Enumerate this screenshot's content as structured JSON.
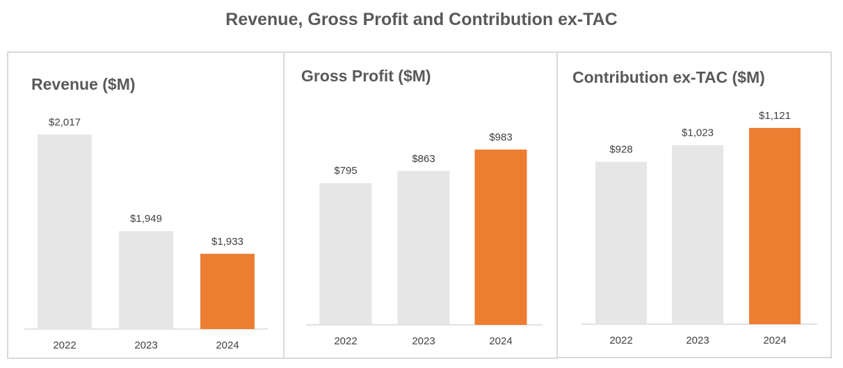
{
  "title": "Revenue, Gross Profit and Contribution ex-TAC",
  "colors": {
    "past": "#E7E6E6",
    "highlight": "#ED7D31",
    "title": "#595959"
  },
  "chart_data": [
    {
      "type": "bar",
      "title": "Revenue ($M)",
      "categories": [
        "2022",
        "2023",
        "2024"
      ],
      "values": [
        2017,
        1949,
        1933
      ],
      "labels": [
        "$2,017",
        "$1,949",
        "$1,933"
      ],
      "ylim": [
        1880,
        2050
      ],
      "highlight_category": "2024",
      "grid": false
    },
    {
      "type": "bar",
      "title": "Gross Profit ($M)",
      "categories": [
        "2022",
        "2023",
        "2024"
      ],
      "values": [
        795,
        863,
        983
      ],
      "labels": [
        "$795",
        "$863",
        "$983"
      ],
      "ylim": [
        0,
        1100
      ],
      "highlight_category": "2024",
      "grid": false
    },
    {
      "type": "bar",
      "title": "Contribution ex-TAC ($M)",
      "categories": [
        "2022",
        "2023",
        "2024"
      ],
      "values": [
        928,
        1023,
        1121
      ],
      "labels": [
        "$928",
        "$1,023",
        "$1,121"
      ],
      "ylim": [
        0,
        1200
      ],
      "highlight_category": "2024",
      "grid": false
    }
  ]
}
